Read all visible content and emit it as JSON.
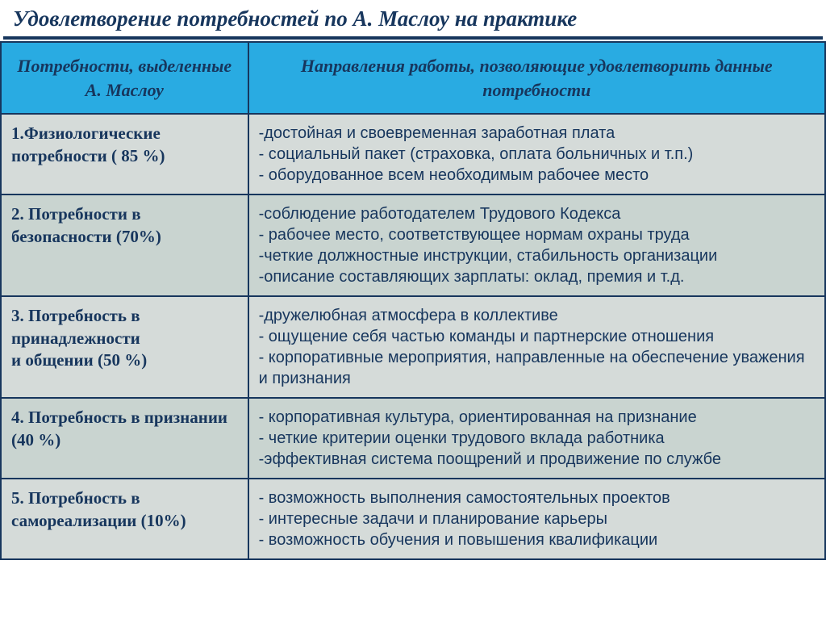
{
  "title": "Удовлетворение потребностей по А. Маслоу на практике",
  "colors": {
    "header_bg": "#29abe2",
    "text_dark": "#17365d",
    "row_light": "#d5dbd9",
    "row_dark": "#c9d4d0",
    "border": "#17365d"
  },
  "table": {
    "headers": {
      "col1": "Потребности, выделенные А. Маслоу",
      "col2": "Направления работы, позволяющие удовлетворить данные потребности"
    },
    "rows": [
      {
        "need": "1.Физиологические потребности ( 85 %)",
        "directions": "-достойная и своевременная заработная плата\n- социальный пакет (страховка, оплата больничных и т.п.)\n- оборудованное всем необходимым рабочее место"
      },
      {
        "need": "2. Потребности в безопасности (70%)",
        "directions": "-соблюдение работодателем Трудового Кодекса\n- рабочее место, соответствующее нормам охраны труда\n-четкие должностные инструкции, стабильность организации\n-описание составляющих зарплаты: оклад, премия и т.д."
      },
      {
        "need": "3. Потребность в принадлежности\nи общении (50 %)",
        "directions": "-дружелюбная атмосфера в коллективе\n- ощущение себя частью команды и партнерские отношения\n- корпоративные мероприятия, направленные на обеспечение уважения и признания"
      },
      {
        "need": "4. Потребность в признании (40 %)",
        "directions": "- корпоративная культура, ориентированная на признание\n- четкие критерии оценки трудового вклада  работника\n-эффективная система поощрений и продвижение по службе"
      },
      {
        "need": "5. Потребность в самореализации (10%)",
        "directions": "- возможность выполнения самостоятельных проектов\n- интересные задачи и планирование карьеры\n- возможность обучения и повышения квалификации"
      }
    ]
  }
}
